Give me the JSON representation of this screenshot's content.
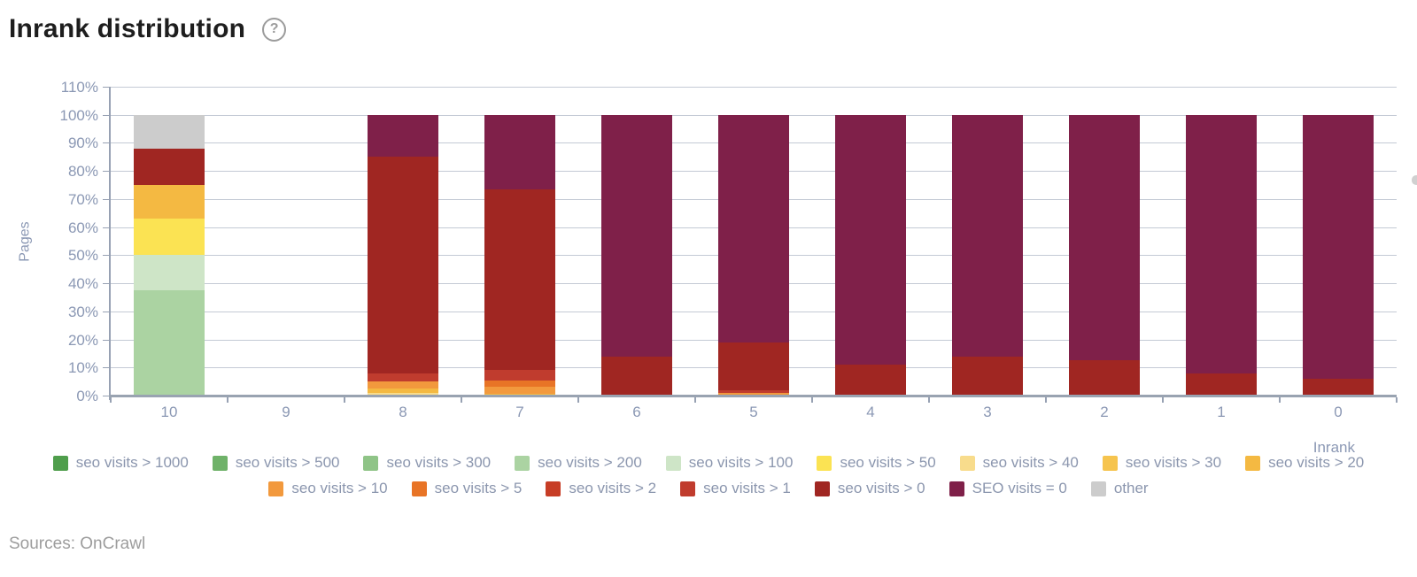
{
  "page": {
    "title": "Inrank distribution",
    "help_icon": "?",
    "sources": "Sources: OnCrawl"
  },
  "chart_data": {
    "type": "bar",
    "stacked": true,
    "title": "Inrank distribution",
    "xlabel": "Inrank",
    "ylabel": "Pages",
    "units": "percent of pages",
    "ylim": [
      0,
      110
    ],
    "grid": true,
    "legend_position": "bottom",
    "y_ticks": [
      "0%",
      "10%",
      "20%",
      "30%",
      "40%",
      "50%",
      "60%",
      "70%",
      "80%",
      "90%",
      "100%",
      "110%"
    ],
    "categories": [
      "10",
      "9",
      "8",
      "7",
      "6",
      "5",
      "4",
      "3",
      "2",
      "1",
      "0"
    ],
    "series": [
      {
        "name": "seo visits > 1000",
        "color": "#4f9e4c",
        "values": [
          0,
          0,
          0,
          0,
          0,
          0,
          0,
          0,
          0,
          0,
          0
        ]
      },
      {
        "name": "seo visits > 500",
        "color": "#6fb269",
        "values": [
          0,
          0,
          0,
          0,
          0,
          0,
          0,
          0,
          0,
          0,
          0
        ]
      },
      {
        "name": "seo visits > 300",
        "color": "#8fc487",
        "values": [
          0,
          0,
          0,
          0,
          0,
          0,
          0,
          0,
          0,
          0,
          0
        ]
      },
      {
        "name": "seo visits > 200",
        "color": "#abd3a2",
        "values": [
          37.5,
          0,
          0,
          0,
          0,
          0,
          0,
          0,
          0,
          0,
          0
        ]
      },
      {
        "name": "seo visits > 100",
        "color": "#cee5c7",
        "values": [
          12.5,
          0,
          0,
          0,
          0,
          0,
          0,
          0,
          0,
          0,
          0
        ]
      },
      {
        "name": "seo visits > 50",
        "color": "#fbe353",
        "values": [
          13,
          0,
          0,
          0,
          0,
          0,
          0,
          0,
          0,
          0,
          0
        ]
      },
      {
        "name": "seo visits > 40",
        "color": "#f8dc8c",
        "values": [
          0,
          0,
          1,
          0,
          0,
          0,
          0,
          0,
          0,
          0,
          0
        ]
      },
      {
        "name": "seo visits > 30",
        "color": "#f6c44e",
        "values": [
          0,
          0,
          0,
          0,
          0,
          0,
          0,
          0,
          0,
          0,
          0
        ]
      },
      {
        "name": "seo visits > 20",
        "color": "#f4b942",
        "values": [
          12,
          0,
          1.5,
          0.7,
          0,
          0,
          0,
          0,
          0,
          0,
          0
        ]
      },
      {
        "name": "seo visits > 10",
        "color": "#f2993d",
        "values": [
          0,
          0,
          2.5,
          2.3,
          0,
          1,
          0,
          0,
          0,
          0,
          0
        ]
      },
      {
        "name": "seo visits > 5",
        "color": "#e87426",
        "values": [
          0,
          0,
          0,
          2.5,
          0,
          0,
          0,
          0,
          0,
          0,
          0
        ]
      },
      {
        "name": "seo visits > 2",
        "color": "#c73d26",
        "values": [
          0,
          0,
          0,
          0,
          0,
          0,
          0,
          0,
          0,
          0,
          0
        ]
      },
      {
        "name": "seo visits > 1",
        "color": "#c03c2e",
        "values": [
          0,
          0,
          3,
          3.5,
          0,
          1,
          0,
          0,
          0,
          0,
          0
        ]
      },
      {
        "name": "seo visits > 0",
        "color": "#a02622",
        "values": [
          13,
          0,
          77,
          64.5,
          14,
          17,
          11,
          14,
          12.5,
          8,
          6
        ]
      },
      {
        "name": "SEO visits = 0",
        "color": "#7f2049",
        "values": [
          0,
          0,
          15,
          26.5,
          86,
          81,
          89,
          86,
          87.5,
          92,
          94
        ]
      },
      {
        "name": "other",
        "color": "#cccccc",
        "values": [
          12,
          0,
          0,
          0,
          0,
          0,
          0,
          0,
          0,
          0,
          0
        ]
      }
    ]
  }
}
